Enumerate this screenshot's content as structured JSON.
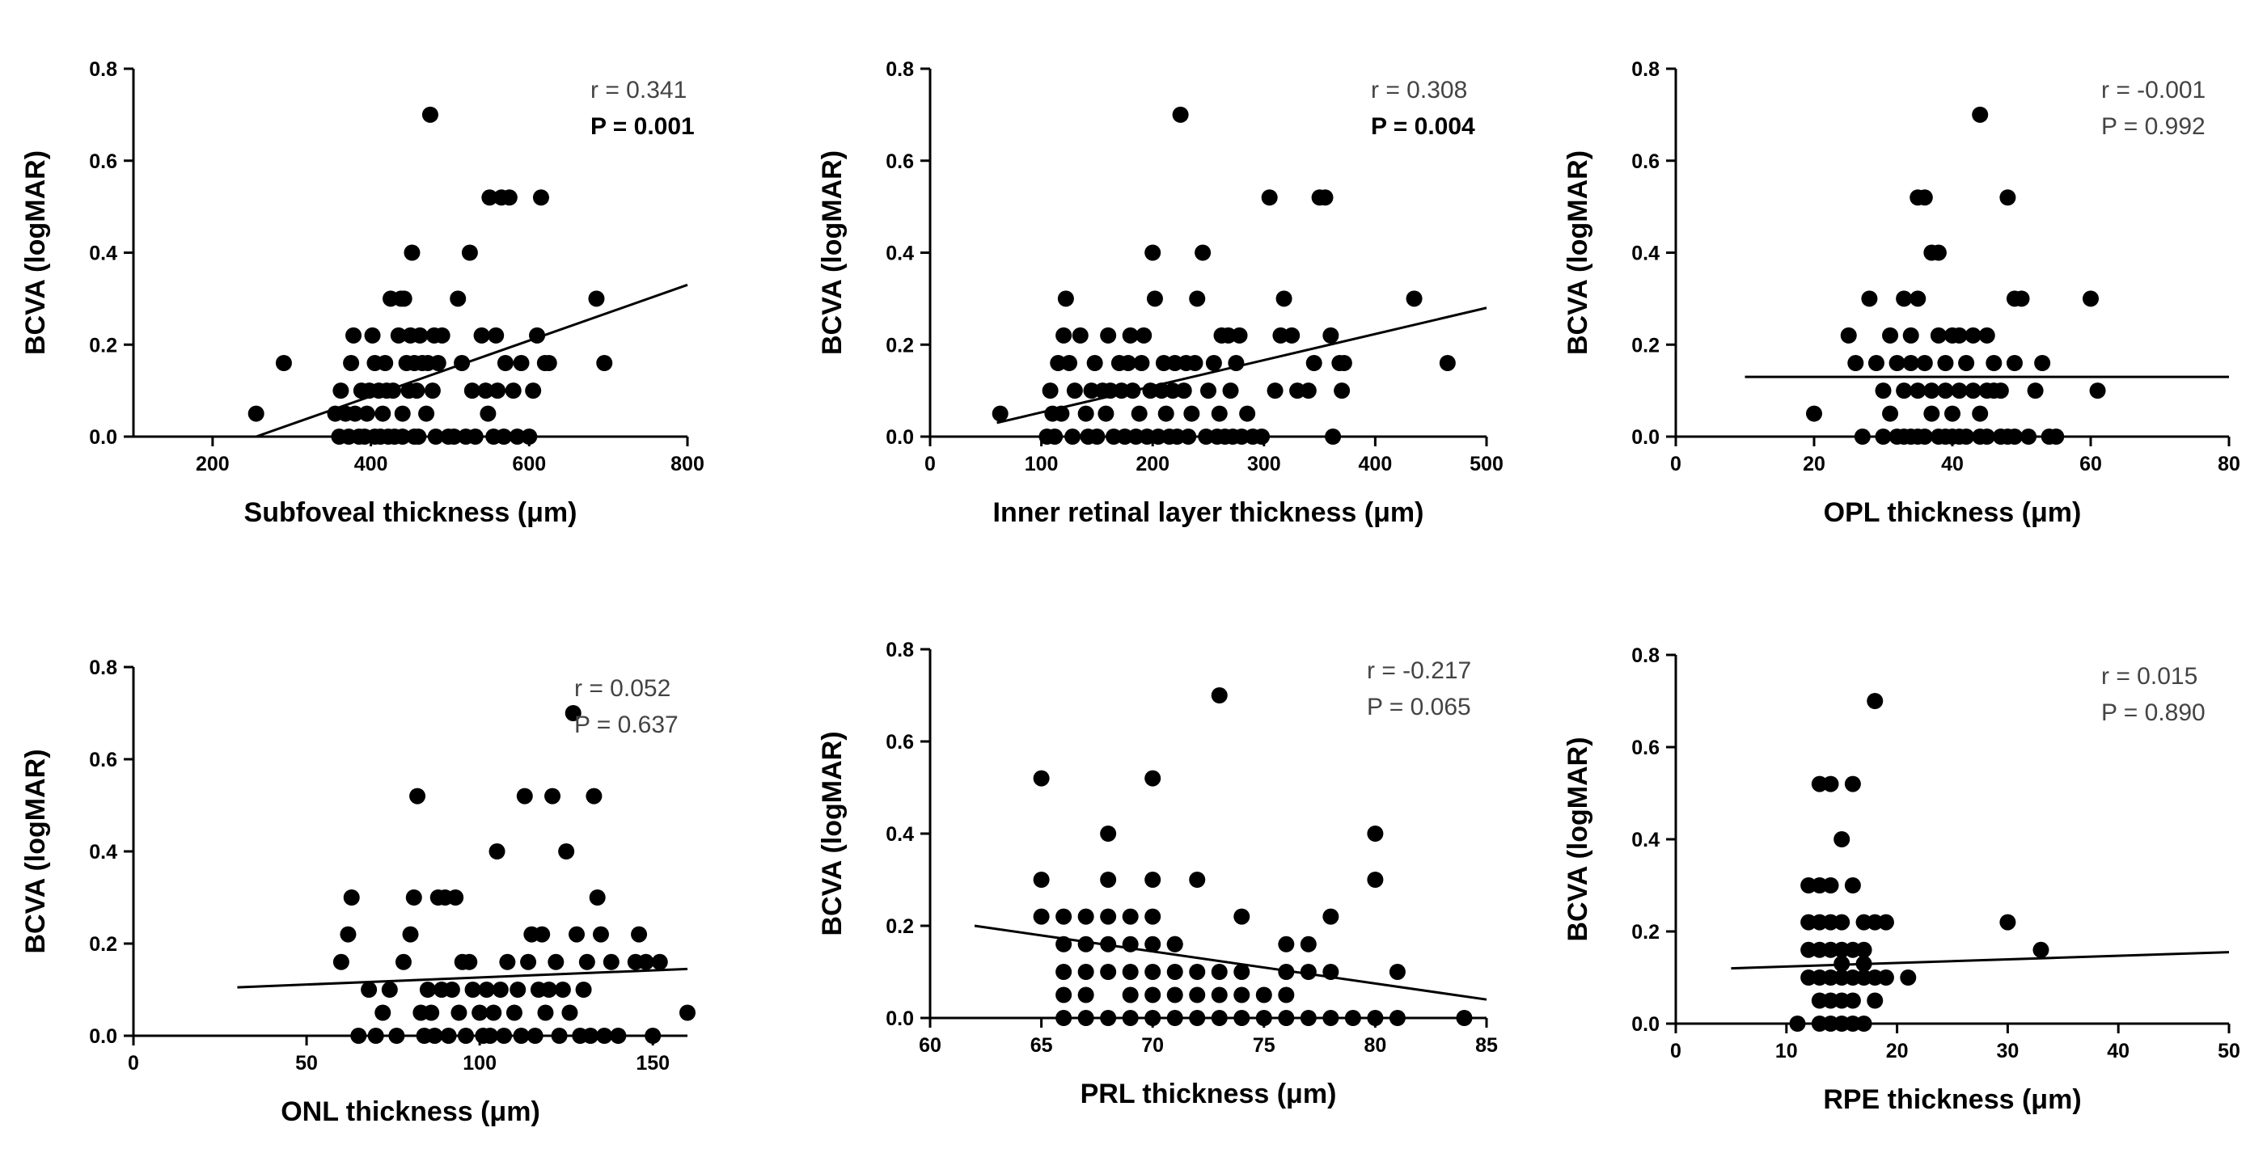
{
  "colors": {
    "points": "#000000",
    "axes": "#000000",
    "stat_text": "#444444"
  },
  "chart_data": [
    {
      "type": "scatter",
      "xlabel": "Subfoveal thickness (μm)",
      "ylabel": "BCVA (logMAR)",
      "xlim": [
        100,
        800
      ],
      "ylim": [
        0,
        0.8
      ],
      "xticks": [
        200,
        400,
        600,
        800
      ],
      "xtick_labels": [
        "200",
        "400",
        "600",
        "800"
      ],
      "yticks": [
        0,
        0.2,
        0.4,
        0.6,
        0.8
      ],
      "ytick_labels": [
        "0.0",
        "0.2",
        "0.4",
        "0.6",
        "0.8"
      ],
      "r_text": "r = 0.341",
      "p_text": "P = 0.001",
      "p_bold": true,
      "fit": {
        "x": [
          255,
          800
        ],
        "y": [
          0.0,
          0.33
        ]
      },
      "x": [
        255,
        290,
        355,
        360,
        362,
        368,
        372,
        375,
        378,
        380,
        385,
        388,
        392,
        395,
        398,
        402,
        405,
        405,
        410,
        412,
        415,
        418,
        420,
        422,
        425,
        428,
        430,
        435,
        438,
        440,
        440,
        442,
        445,
        448,
        450,
        452,
        455,
        455,
        458,
        460,
        462,
        465,
        470,
        472,
        475,
        478,
        480,
        482,
        485,
        490,
        498,
        505,
        510,
        515,
        520,
        525,
        528,
        532,
        540,
        545,
        548,
        550,
        555,
        558,
        560,
        565,
        568,
        570,
        575,
        580,
        585,
        590,
        600,
        605,
        610,
        615,
        620,
        625,
        685,
        695
      ],
      "y": [
        0.05,
        0.16,
        0.05,
        0.0,
        0.1,
        0.05,
        0.0,
        0.16,
        0.22,
        0.05,
        0.0,
        0.1,
        0.0,
        0.05,
        0.1,
        0.22,
        0.16,
        0.0,
        0.1,
        0.0,
        0.05,
        0.16,
        0.1,
        0.0,
        0.3,
        0.1,
        0.0,
        0.22,
        0.3,
        0.05,
        0.0,
        0.3,
        0.16,
        0.1,
        0.22,
        0.4,
        0.0,
        0.16,
        0.1,
        0.0,
        0.22,
        0.16,
        0.05,
        0.16,
        0.7,
        0.1,
        0.22,
        0.0,
        0.16,
        0.22,
        0.0,
        0.0,
        0.3,
        0.16,
        0.0,
        0.4,
        0.1,
        0.0,
        0.22,
        0.1,
        0.05,
        0.52,
        0.0,
        0.22,
        0.1,
        0.52,
        0.0,
        0.16,
        0.52,
        0.1,
        0.0,
        0.16,
        0.0,
        0.1,
        0.22,
        0.52,
        0.16,
        0.16,
        0.3,
        0.16
      ]
    },
    {
      "type": "scatter",
      "xlabel": "Inner retinal layer thickness (μm)",
      "ylabel": "BCVA (logMAR)",
      "xlim": [
        0,
        500
      ],
      "ylim": [
        0,
        0.8
      ],
      "xticks": [
        0,
        100,
        200,
        300,
        400,
        500
      ],
      "xtick_labels": [
        "0",
        "100",
        "200",
        "300",
        "400",
        "500"
      ],
      "yticks": [
        0,
        0.2,
        0.4,
        0.6,
        0.8
      ],
      "ytick_labels": [
        "0.0",
        "0.2",
        "0.4",
        "0.6",
        "0.8"
      ],
      "r_text": "r = 0.308",
      "p_text": "P = 0.004",
      "p_bold": true,
      "fit": {
        "x": [
          60,
          500
        ],
        "y": [
          0.03,
          0.28
        ]
      },
      "x": [
        63,
        105,
        108,
        110,
        112,
        115,
        118,
        120,
        122,
        125,
        128,
        130,
        135,
        140,
        142,
        145,
        148,
        150,
        155,
        158,
        160,
        162,
        165,
        170,
        172,
        175,
        178,
        180,
        182,
        185,
        188,
        190,
        192,
        195,
        198,
        200,
        202,
        205,
        208,
        210,
        212,
        215,
        218,
        220,
        222,
        225,
        228,
        230,
        232,
        235,
        238,
        240,
        245,
        248,
        250,
        255,
        258,
        260,
        262,
        265,
        268,
        270,
        272,
        275,
        278,
        280,
        285,
        290,
        298,
        305,
        310,
        315,
        318,
        325,
        330,
        340,
        345,
        350,
        355,
        360,
        362,
        368,
        370,
        372,
        435,
        465
      ],
      "y": [
        0.05,
        0.0,
        0.1,
        0.05,
        0.0,
        0.16,
        0.05,
        0.22,
        0.3,
        0.16,
        0.0,
        0.1,
        0.22,
        0.05,
        0.0,
        0.1,
        0.16,
        0.0,
        0.1,
        0.05,
        0.22,
        0.1,
        0.0,
        0.16,
        0.1,
        0.0,
        0.16,
        0.22,
        0.1,
        0.0,
        0.05,
        0.16,
        0.22,
        0.0,
        0.1,
        0.4,
        0.3,
        0.0,
        0.1,
        0.16,
        0.05,
        0.0,
        0.1,
        0.16,
        0.0,
        0.7,
        0.1,
        0.16,
        0.0,
        0.05,
        0.16,
        0.3,
        0.4,
        0.0,
        0.1,
        0.16,
        0.0,
        0.05,
        0.22,
        0.0,
        0.22,
        0.1,
        0.0,
        0.16,
        0.22,
        0.0,
        0.05,
        0.0,
        0.0,
        0.52,
        0.1,
        0.22,
        0.3,
        0.22,
        0.1,
        0.1,
        0.16,
        0.52,
        0.52,
        0.22,
        0.0,
        0.16,
        0.1,
        0.16,
        0.3,
        0.16
      ]
    },
    {
      "type": "scatter",
      "xlabel": "OPL thickness (μm)",
      "ylabel": "BCVA (logMAR)",
      "xlim": [
        0,
        80
      ],
      "ylim": [
        0,
        0.8
      ],
      "xticks": [
        0,
        20,
        40,
        60,
        80
      ],
      "xtick_labels": [
        "0",
        "20",
        "40",
        "60",
        "80"
      ],
      "yticks": [
        0,
        0.2,
        0.4,
        0.6,
        0.8
      ],
      "ytick_labels": [
        "0.0",
        "0.2",
        "0.4",
        "0.6",
        "0.8"
      ],
      "r_text": "r = -0.001",
      "p_text": "P = 0.992",
      "p_bold": false,
      "fit": {
        "x": [
          10,
          80
        ],
        "y": [
          0.13,
          0.13
        ]
      },
      "x": [
        20,
        25,
        26,
        27,
        28,
        29,
        30,
        30,
        31,
        31,
        32,
        32,
        33,
        33,
        33,
        34,
        34,
        34,
        35,
        35,
        35,
        35,
        36,
        36,
        36,
        37,
        37,
        37,
        38,
        38,
        38,
        39,
        39,
        39,
        40,
        40,
        40,
        41,
        41,
        41,
        42,
        42,
        43,
        43,
        44,
        44,
        44,
        45,
        45,
        45,
        46,
        46,
        47,
        47,
        48,
        48,
        49,
        49,
        49,
        50,
        51,
        52,
        53,
        54,
        55,
        60,
        61
      ],
      "y": [
        0.05,
        0.22,
        0.16,
        0.0,
        0.3,
        0.16,
        0.1,
        0.0,
        0.22,
        0.05,
        0.16,
        0.0,
        0.3,
        0.1,
        0.0,
        0.22,
        0.16,
        0.0,
        0.52,
        0.3,
        0.1,
        0.0,
        0.16,
        0.52,
        0.0,
        0.4,
        0.1,
        0.05,
        0.22,
        0.4,
        0.0,
        0.16,
        0.1,
        0.0,
        0.22,
        0.05,
        0.0,
        0.22,
        0.1,
        0.0,
        0.16,
        0.0,
        0.1,
        0.22,
        0.7,
        0.05,
        0.0,
        0.22,
        0.1,
        0.0,
        0.16,
        0.1,
        0.0,
        0.1,
        0.52,
        0.0,
        0.3,
        0.16,
        0.0,
        0.3,
        0.0,
        0.1,
        0.16,
        0.0,
        0.0,
        0.3,
        0.1
      ]
    },
    {
      "type": "scatter",
      "xlabel": "ONL thickness (μm)",
      "ylabel": "BCVA (logMAR)",
      "xlim": [
        0,
        160
      ],
      "ylim": [
        0,
        0.8
      ],
      "xticks": [
        0,
        50,
        100,
        150
      ],
      "xtick_labels": [
        "0",
        "50",
        "100",
        "150"
      ],
      "yticks": [
        0,
        0.2,
        0.4,
        0.6,
        0.8
      ],
      "ytick_labels": [
        "0.0",
        "0.2",
        "0.4",
        "0.6",
        "0.8"
      ],
      "r_text": "r = 0.052",
      "p_text": "P = 0.637",
      "p_bold": false,
      "fit": {
        "x": [
          30,
          160
        ],
        "y": [
          0.105,
          0.145
        ]
      },
      "x": [
        60,
        62,
        63,
        65,
        68,
        70,
        72,
        74,
        76,
        78,
        80,
        81,
        82,
        83,
        84,
        85,
        86,
        87,
        88,
        89,
        90,
        91,
        92,
        93,
        94,
        95,
        96,
        97,
        98,
        100,
        101,
        102,
        103,
        104,
        105,
        106,
        107,
        108,
        110,
        111,
        112,
        113,
        114,
        115,
        116,
        117,
        118,
        119,
        120,
        121,
        122,
        123,
        124,
        125,
        126,
        127,
        128,
        129,
        130,
        131,
        132,
        133,
        134,
        135,
        136,
        138,
        140,
        145,
        146,
        148,
        150,
        152,
        160
      ],
      "y": [
        0.16,
        0.22,
        0.3,
        0.0,
        0.1,
        0.0,
        0.05,
        0.1,
        0.0,
        0.16,
        0.22,
        0.3,
        0.52,
        0.05,
        0.0,
        0.1,
        0.05,
        0.0,
        0.3,
        0.1,
        0.3,
        0.0,
        0.1,
        0.3,
        0.05,
        0.16,
        0.0,
        0.16,
        0.1,
        0.05,
        0.0,
        0.1,
        0.0,
        0.05,
        0.4,
        0.1,
        0.0,
        0.16,
        0.05,
        0.1,
        0.0,
        0.52,
        0.16,
        0.22,
        0.0,
        0.1,
        0.22,
        0.05,
        0.1,
        0.52,
        0.16,
        0.0,
        0.1,
        0.4,
        0.05,
        0.7,
        0.22,
        0.0,
        0.1,
        0.16,
        0.0,
        0.52,
        0.3,
        0.22,
        0.0,
        0.16,
        0.0,
        0.16,
        0.22,
        0.16,
        0.0,
        0.16,
        0.05
      ]
    },
    {
      "type": "scatter",
      "xlabel": "PRL thickness (μm)",
      "ylabel": "BCVA (logMAR)",
      "xlim": [
        60,
        85
      ],
      "ylim": [
        0,
        0.8
      ],
      "xticks": [
        60,
        65,
        70,
        75,
        80,
        85
      ],
      "xtick_labels": [
        "60",
        "65",
        "70",
        "75",
        "80",
        "85"
      ],
      "yticks": [
        0,
        0.2,
        0.4,
        0.6,
        0.8
      ],
      "ytick_labels": [
        "0.0",
        "0.2",
        "0.4",
        "0.6",
        "0.8"
      ],
      "r_text": "r = -0.217",
      "p_text": "P = 0.065",
      "p_bold": false,
      "fit": {
        "x": [
          62,
          85
        ],
        "y": [
          0.2,
          0.04
        ]
      },
      "x": [
        65,
        65,
        65,
        66,
        66,
        66,
        66,
        66,
        67,
        67,
        67,
        67,
        67,
        68,
        68,
        68,
        68,
        68,
        68,
        69,
        69,
        69,
        69,
        69,
        70,
        70,
        70,
        70,
        70,
        70,
        70,
        71,
        71,
        71,
        71,
        71,
        72,
        72,
        72,
        72,
        73,
        73,
        73,
        73,
        74,
        74,
        74,
        74,
        75,
        75,
        76,
        76,
        76,
        76,
        77,
        77,
        77,
        78,
        78,
        78,
        79,
        80,
        80,
        80,
        81,
        81,
        84
      ],
      "y": [
        0.52,
        0.3,
        0.22,
        0.22,
        0.16,
        0.1,
        0.05,
        0.0,
        0.22,
        0.16,
        0.1,
        0.05,
        0.0,
        0.4,
        0.3,
        0.22,
        0.16,
        0.1,
        0.0,
        0.22,
        0.16,
        0.1,
        0.05,
        0.0,
        0.52,
        0.3,
        0.22,
        0.16,
        0.1,
        0.05,
        0.0,
        0.16,
        0.1,
        0.05,
        0.0,
        0.16,
        0.3,
        0.1,
        0.05,
        0.0,
        0.7,
        0.1,
        0.05,
        0.0,
        0.22,
        0.1,
        0.05,
        0.0,
        0.05,
        0.0,
        0.16,
        0.1,
        0.05,
        0.0,
        0.16,
        0.1,
        0.0,
        0.22,
        0.1,
        0.0,
        0.0,
        0.4,
        0.3,
        0.0,
        0.1,
        0.0,
        0.0
      ]
    },
    {
      "type": "scatter",
      "xlabel": "RPE thickness (μm)",
      "ylabel": "BCVA (logMAR)",
      "xlim": [
        0,
        50
      ],
      "ylim": [
        0,
        0.8
      ],
      "xticks": [
        0,
        10,
        20,
        30,
        40,
        50
      ],
      "xtick_labels": [
        "0",
        "10",
        "20",
        "30",
        "40",
        "50"
      ],
      "yticks": [
        0,
        0.2,
        0.4,
        0.6,
        0.8
      ],
      "ytick_labels": [
        "0.0",
        "0.2",
        "0.4",
        "0.6",
        "0.8"
      ],
      "r_text": "r = 0.015",
      "p_text": "P = 0.890",
      "p_bold": false,
      "fit": {
        "x": [
          5,
          50
        ],
        "y": [
          0.12,
          0.155
        ]
      },
      "x": [
        11,
        12,
        12,
        12,
        12,
        13,
        13,
        13,
        13,
        13,
        13,
        13,
        14,
        14,
        14,
        14,
        14,
        14,
        14,
        15,
        15,
        15,
        15,
        15,
        15,
        15,
        16,
        16,
        16,
        16,
        16,
        16,
        17,
        17,
        17,
        17,
        17,
        18,
        18,
        18,
        18,
        19,
        19,
        21,
        30,
        33
      ],
      "y": [
        0.0,
        0.3,
        0.22,
        0.16,
        0.1,
        0.52,
        0.3,
        0.22,
        0.1,
        0.05,
        0.0,
        0.16,
        0.52,
        0.3,
        0.22,
        0.16,
        0.1,
        0.05,
        0.0,
        0.4,
        0.22,
        0.16,
        0.1,
        0.05,
        0.0,
        0.13,
        0.52,
        0.3,
        0.16,
        0.1,
        0.05,
        0.0,
        0.22,
        0.16,
        0.1,
        0.0,
        0.13,
        0.7,
        0.22,
        0.1,
        0.05,
        0.22,
        0.1,
        0.1,
        0.22,
        0.16
      ]
    }
  ]
}
